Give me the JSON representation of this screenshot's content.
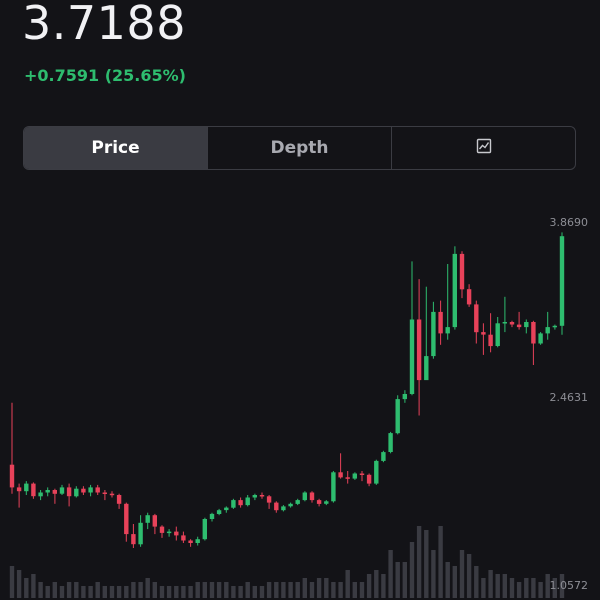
{
  "header": {
    "price": "3.7188",
    "change": "+0.7591 (25.65%)"
  },
  "tabs": [
    {
      "label": "Price",
      "active": true
    },
    {
      "label": "Depth",
      "active": false
    },
    {
      "label": "",
      "icon": "chart-icon",
      "active": false
    }
  ],
  "colors": {
    "up": "#2ebd6f",
    "down": "#e8425a",
    "volume": "#3a3b42",
    "background": "#131317"
  },
  "chart_data": {
    "type": "candlestick",
    "y_axis_labels": [
      "3.8690",
      "2.4631",
      "1.0572"
    ],
    "ylim": [
      1.0572,
      3.869
    ],
    "candles": [
      [
        2.01,
        1.83,
        2.5,
        1.78
      ],
      [
        1.83,
        1.8,
        1.86,
        1.67
      ],
      [
        1.8,
        1.86,
        1.88,
        1.77
      ],
      [
        1.86,
        1.76,
        1.87,
        1.74
      ],
      [
        1.76,
        1.79,
        1.81,
        1.73
      ],
      [
        1.79,
        1.81,
        1.83,
        1.76
      ],
      [
        1.81,
        1.78,
        1.82,
        1.7
      ],
      [
        1.78,
        1.83,
        1.85,
        1.77
      ],
      [
        1.83,
        1.76,
        1.86,
        1.68
      ],
      [
        1.76,
        1.82,
        1.84,
        1.75
      ],
      [
        1.82,
        1.79,
        1.84,
        1.77
      ],
      [
        1.79,
        1.83,
        1.85,
        1.76
      ],
      [
        1.83,
        1.79,
        1.85,
        1.77
      ],
      [
        1.79,
        1.78,
        1.81,
        1.73
      ],
      [
        1.78,
        1.77,
        1.8,
        1.75
      ],
      [
        1.77,
        1.7,
        1.78,
        1.66
      ],
      [
        1.7,
        1.46,
        1.71,
        1.4
      ],
      [
        1.46,
        1.38,
        1.54,
        1.35
      ],
      [
        1.38,
        1.55,
        1.61,
        1.36
      ],
      [
        1.55,
        1.61,
        1.63,
        1.5
      ],
      [
        1.61,
        1.52,
        1.62,
        1.46
      ],
      [
        1.52,
        1.47,
        1.53,
        1.43
      ],
      [
        1.47,
        1.48,
        1.5,
        1.44
      ],
      [
        1.48,
        1.45,
        1.52,
        1.41
      ],
      [
        1.45,
        1.41,
        1.48,
        1.39
      ],
      [
        1.41,
        1.39,
        1.42,
        1.36
      ],
      [
        1.39,
        1.42,
        1.44,
        1.37
      ],
      [
        1.42,
        1.58,
        1.59,
        1.41
      ],
      [
        1.58,
        1.62,
        1.63,
        1.56
      ],
      [
        1.62,
        1.65,
        1.66,
        1.61
      ],
      [
        1.65,
        1.67,
        1.68,
        1.63
      ],
      [
        1.67,
        1.73,
        1.74,
        1.66
      ],
      [
        1.73,
        1.69,
        1.75,
        1.67
      ],
      [
        1.69,
        1.75,
        1.77,
        1.68
      ],
      [
        1.75,
        1.77,
        1.78,
        1.73
      ],
      [
        1.77,
        1.76,
        1.79,
        1.74
      ],
      [
        1.76,
        1.71,
        1.77,
        1.66
      ],
      [
        1.71,
        1.65,
        1.72,
        1.63
      ],
      [
        1.65,
        1.68,
        1.69,
        1.64
      ],
      [
        1.68,
        1.7,
        1.71,
        1.67
      ],
      [
        1.7,
        1.73,
        1.74,
        1.69
      ],
      [
        1.73,
        1.79,
        1.8,
        1.72
      ],
      [
        1.79,
        1.73,
        1.8,
        1.71
      ],
      [
        1.73,
        1.7,
        1.74,
        1.68
      ],
      [
        1.7,
        1.72,
        1.73,
        1.69
      ],
      [
        1.72,
        1.95,
        1.96,
        1.71
      ],
      [
        1.95,
        1.91,
        2.1,
        1.9
      ],
      [
        1.91,
        1.9,
        1.96,
        1.86
      ],
      [
        1.9,
        1.94,
        1.95,
        1.89
      ],
      [
        1.94,
        1.93,
        1.96,
        1.88
      ],
      [
        1.93,
        1.86,
        1.94,
        1.84
      ],
      [
        1.86,
        2.04,
        2.05,
        1.85
      ],
      [
        2.04,
        2.11,
        2.12,
        2.03
      ],
      [
        2.11,
        2.26,
        2.27,
        2.1
      ],
      [
        2.26,
        2.53,
        2.56,
        2.25
      ],
      [
        2.53,
        2.57,
        2.6,
        2.5
      ],
      [
        2.57,
        3.16,
        3.62,
        2.56
      ],
      [
        3.16,
        2.68,
        3.48,
        2.4
      ],
      [
        2.68,
        2.87,
        3.42,
        2.86
      ],
      [
        2.87,
        3.22,
        3.3,
        2.85
      ],
      [
        3.22,
        3.05,
        3.31,
        2.96
      ],
      [
        3.05,
        3.1,
        3.6,
        3.0
      ],
      [
        3.1,
        3.68,
        3.74,
        3.08
      ],
      [
        3.68,
        3.4,
        3.7,
        3.33
      ],
      [
        3.4,
        3.28,
        3.44,
        3.26
      ],
      [
        3.28,
        3.06,
        3.31,
        2.97
      ],
      [
        3.06,
        3.04,
        3.13,
        2.88
      ],
      [
        3.04,
        2.95,
        3.21,
        2.9
      ],
      [
        2.95,
        3.13,
        3.18,
        2.94
      ],
      [
        3.13,
        3.14,
        3.34,
        3.06
      ],
      [
        3.14,
        3.12,
        3.15,
        3.1
      ],
      [
        3.12,
        3.1,
        3.22,
        3.08
      ],
      [
        3.1,
        3.14,
        3.16,
        3.05
      ],
      [
        3.14,
        2.97,
        3.15,
        2.8
      ],
      [
        2.97,
        3.05,
        3.06,
        2.96
      ],
      [
        3.05,
        3.1,
        3.22,
        3.0
      ],
      [
        3.1,
        3.11,
        3.12,
        3.08
      ],
      [
        3.11,
        3.82,
        3.85,
        3.04
      ]
    ],
    "volume": [
      8,
      7,
      5,
      6,
      4,
      3,
      4,
      3,
      4,
      4,
      3,
      3,
      4,
      3,
      3,
      3,
      3,
      4,
      4,
      5,
      4,
      3,
      3,
      3,
      3,
      3,
      4,
      4,
      4,
      4,
      4,
      3,
      3,
      4,
      3,
      3,
      4,
      4,
      4,
      4,
      4,
      5,
      4,
      5,
      5,
      4,
      4,
      7,
      4,
      4,
      6,
      7,
      6,
      12,
      9,
      9,
      14,
      18,
      17,
      12,
      18,
      9,
      8,
      12,
      11,
      8,
      5,
      7,
      6,
      6,
      5,
      4,
      5,
      5,
      4,
      6,
      5,
      6
    ]
  }
}
